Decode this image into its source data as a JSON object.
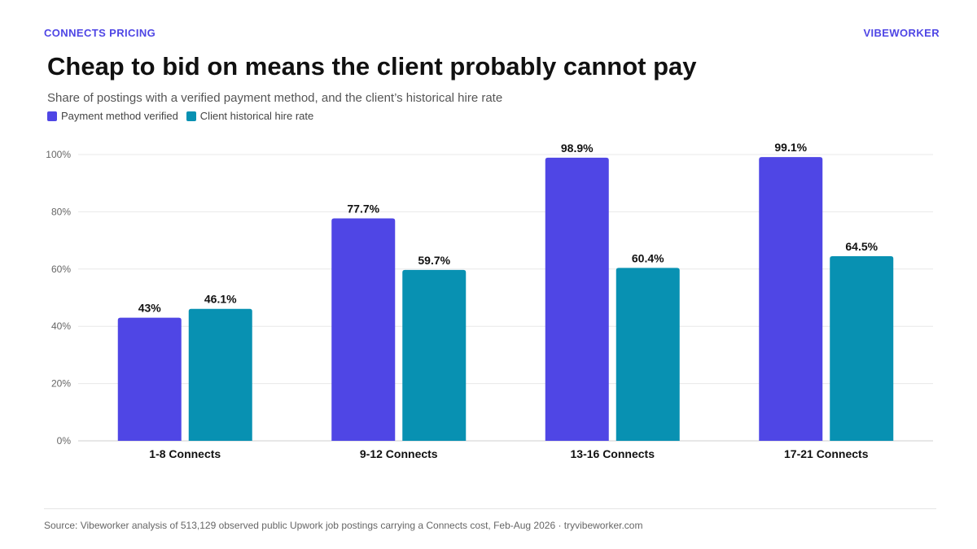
{
  "header": {
    "kicker": "CONNECTS PRICING",
    "brand": "VIBEWORKER"
  },
  "footer": {
    "source": "Source: Vibeworker analysis of 513,129 observed public Upwork job postings carrying a Connects cost, Feb-Aug 2026 · tryvibeworker.com"
  },
  "colors": {
    "accent": "#4f46e5",
    "series_verified": "#4f46e5",
    "series_hire": "#0891b2"
  },
  "chart_data": {
    "type": "bar",
    "title": "Cheap to bid on means the client probably cannot pay",
    "subtitle": "Share of postings with a verified payment method, and the client’s historical hire rate",
    "xlabel": "",
    "ylabel": "",
    "categories": [
      "1-8 Connects",
      "9-12 Connects",
      "13-16 Connects",
      "17-21 Connects"
    ],
    "series": [
      {
        "name": "Payment method verified",
        "values": [
          43,
          77.7,
          98.9,
          99.1
        ],
        "labels": [
          "43%",
          "77.7%",
          "98.9%",
          "99.1%"
        ]
      },
      {
        "name": "Client historical hire rate",
        "values": [
          46.1,
          59.7,
          60.4,
          64.5
        ],
        "labels": [
          "46.1%",
          "59.7%",
          "60.4%",
          "64.5%"
        ]
      }
    ],
    "ylim": [
      0,
      100
    ],
    "yticks": [
      0,
      20,
      40,
      60,
      80,
      100
    ],
    "ytick_labels": [
      "0%",
      "20%",
      "40%",
      "60%",
      "80%",
      "100%"
    ],
    "grid": true,
    "legend": "top-left"
  }
}
